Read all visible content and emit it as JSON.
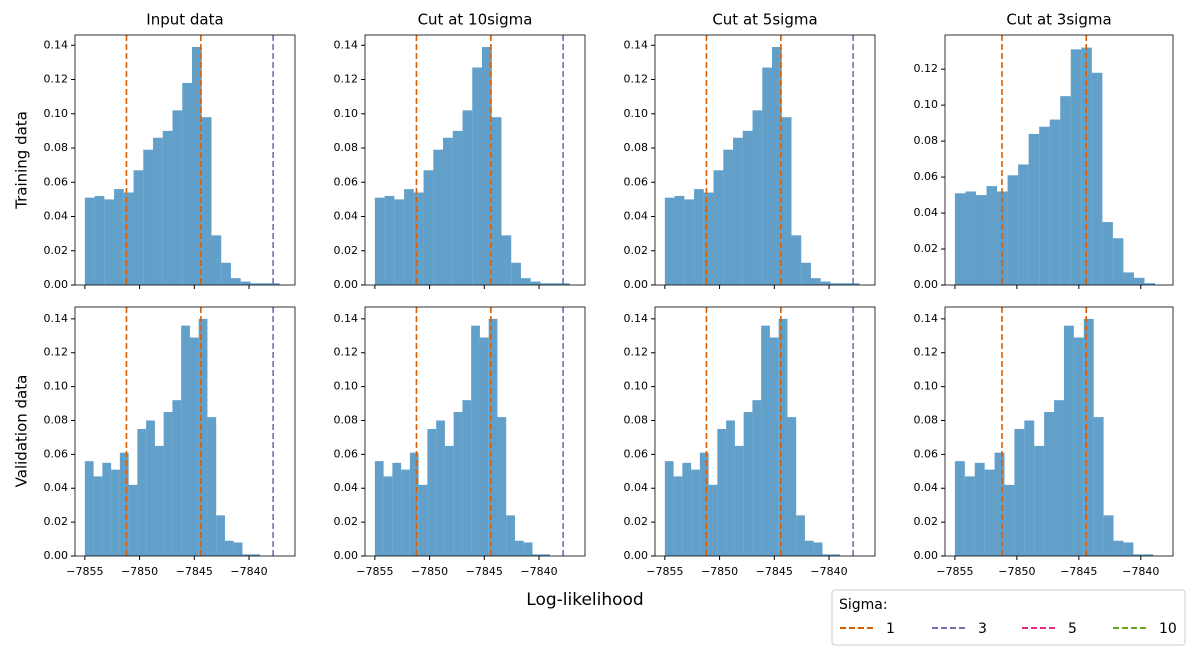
{
  "chart_data": [
    {
      "type": "histogram",
      "title": "Input data",
      "color": "#1f77b4",
      "alpha": 0.7,
      "bins": [
        -7855,
        -7854.11,
        -7853.22,
        -7852.33,
        -7851.44,
        -7850.55,
        -7849.66,
        -7848.77,
        -7847.88,
        -7846.99,
        -7846.1,
        -7845.21,
        -7844.32,
        -7843.43,
        -7842.54,
        -7841.65,
        -7840.76,
        -7839.87,
        -7838.98,
        -7838.09,
        -7837.2
      ],
      "values": [
        0.051,
        0.052,
        0.05,
        0.056,
        0.054,
        0.067,
        0.079,
        0.086,
        0.09,
        0.102,
        0.118,
        0.139,
        0.098,
        0.029,
        0.013,
        0.004,
        0.002,
        0.001,
        0.001,
        0.001
      ],
      "vlines": [
        {
          "x": -7851.2,
          "color": "#d95f02"
        },
        {
          "x": -7844.4,
          "color": "#d95f02"
        },
        {
          "x": -7837.8,
          "color": "#7570b3"
        }
      ],
      "xlim": [
        -7855.9,
        -7835.8
      ],
      "xticks": [
        -7855,
        -7850,
        -7845,
        -7840
      ],
      "ylim": [
        0,
        0.146
      ],
      "yticks": [
        {
          "value": 0,
          "label": "0.00"
        },
        {
          "value": 0.02,
          "label": "0.02"
        },
        {
          "value": 0.04,
          "label": "0.04"
        },
        {
          "value": 0.06,
          "label": "0.06"
        },
        {
          "value": 0.08,
          "label": "0.08"
        },
        {
          "value": 0.1,
          "label": "0.10"
        },
        {
          "value": 0.12,
          "label": "0.12"
        },
        {
          "value": 0.14,
          "label": "0.14"
        }
      ]
    },
    {
      "type": "histogram",
      "title": "Cut at 10sigma",
      "color": "#1f77b4",
      "alpha": 0.7,
      "bins": [
        -7855,
        -7854.11,
        -7853.22,
        -7852.33,
        -7851.44,
        -7850.55,
        -7849.66,
        -7848.77,
        -7847.88,
        -7846.99,
        -7846.1,
        -7845.21,
        -7844.32,
        -7843.43,
        -7842.54,
        -7841.65,
        -7840.76,
        -7839.87,
        -7838.98,
        -7838.09,
        -7837.2
      ],
      "values": [
        0.051,
        0.052,
        0.05,
        0.056,
        0.054,
        0.067,
        0.079,
        0.086,
        0.09,
        0.102,
        0.127,
        0.139,
        0.098,
        0.029,
        0.013,
        0.004,
        0.002,
        0.001,
        0.001,
        0.001
      ],
      "vlines": [
        {
          "x": -7851.2,
          "color": "#d95f02"
        },
        {
          "x": -7844.4,
          "color": "#d95f02"
        },
        {
          "x": -7837.8,
          "color": "#7570b3"
        }
      ],
      "xlim": [
        -7855.9,
        -7835.8
      ],
      "xticks": [
        -7855,
        -7850,
        -7845,
        -7840
      ],
      "ylim": [
        0,
        0.146
      ],
      "yticks": [
        {
          "value": 0,
          "label": "0.00"
        },
        {
          "value": 0.02,
          "label": "0.02"
        },
        {
          "value": 0.04,
          "label": "0.04"
        },
        {
          "value": 0.06,
          "label": "0.06"
        },
        {
          "value": 0.08,
          "label": "0.08"
        },
        {
          "value": 0.1,
          "label": "0.10"
        },
        {
          "value": 0.12,
          "label": "0.12"
        },
        {
          "value": 0.14,
          "label": "0.14"
        }
      ]
    },
    {
      "type": "histogram",
      "title": "Cut at 5sigma",
      "color": "#1f77b4",
      "alpha": 0.7,
      "bins": [
        -7855,
        -7854.11,
        -7853.22,
        -7852.33,
        -7851.44,
        -7850.55,
        -7849.66,
        -7848.77,
        -7847.88,
        -7846.99,
        -7846.1,
        -7845.21,
        -7844.32,
        -7843.43,
        -7842.54,
        -7841.65,
        -7840.76,
        -7839.87,
        -7838.98,
        -7838.09,
        -7837.2
      ],
      "values": [
        0.051,
        0.052,
        0.05,
        0.056,
        0.054,
        0.067,
        0.079,
        0.086,
        0.09,
        0.102,
        0.127,
        0.139,
        0.098,
        0.029,
        0.013,
        0.004,
        0.002,
        0.001,
        0.001,
        0.001
      ],
      "vlines": [
        {
          "x": -7851.2,
          "color": "#d95f02"
        },
        {
          "x": -7844.4,
          "color": "#d95f02"
        },
        {
          "x": -7837.8,
          "color": "#7570b3"
        }
      ],
      "xlim": [
        -7855.9,
        -7835.8
      ],
      "xticks": [
        -7855,
        -7850,
        -7845,
        -7840
      ],
      "ylim": [
        0,
        0.146
      ],
      "yticks": [
        {
          "value": 0,
          "label": "0.00"
        },
        {
          "value": 0.02,
          "label": "0.02"
        },
        {
          "value": 0.04,
          "label": "0.04"
        },
        {
          "value": 0.06,
          "label": "0.06"
        },
        {
          "value": 0.08,
          "label": "0.08"
        },
        {
          "value": 0.1,
          "label": "0.10"
        },
        {
          "value": 0.12,
          "label": "0.12"
        },
        {
          "value": 0.14,
          "label": "0.14"
        }
      ]
    },
    {
      "type": "histogram",
      "title": "Cut at 3sigma",
      "color": "#1f77b4",
      "alpha": 0.7,
      "bins": [
        -7855,
        -7854.15,
        -7853.3,
        -7852.45,
        -7851.6,
        -7850.75,
        -7849.9,
        -7849.05,
        -7848.2,
        -7847.35,
        -7846.5,
        -7845.65,
        -7844.8,
        -7843.95,
        -7843.1,
        -7842.25,
        -7841.4,
        -7840.55,
        -7839.7,
        -7838.85
      ],
      "values": [
        0.051,
        0.052,
        0.05,
        0.055,
        0.052,
        0.061,
        0.067,
        0.084,
        0.088,
        0.092,
        0.105,
        0.131,
        0.132,
        0.118,
        0.035,
        0.026,
        0.007,
        0.004,
        0.001
      ],
      "vlines": [
        {
          "x": -7851.2,
          "color": "#d95f02"
        },
        {
          "x": -7844.4,
          "color": "#d95f02"
        }
      ],
      "xlim": [
        -7855.8,
        -7837.4
      ],
      "xticks": [
        -7855,
        -7850,
        -7845,
        -7840
      ],
      "ylim": [
        0,
        0.139
      ],
      "yticks": [
        {
          "value": 0,
          "label": "0.00"
        },
        {
          "value": 0.02,
          "label": "0.02"
        },
        {
          "value": 0.04,
          "label": "0.04"
        },
        {
          "value": 0.06,
          "label": "0.06"
        },
        {
          "value": 0.08,
          "label": "0.08"
        },
        {
          "value": 0.1,
          "label": "0.10"
        },
        {
          "value": 0.12,
          "label": "0.12"
        }
      ]
    },
    {
      "type": "histogram",
      "color": "#1f77b4",
      "alpha": 0.7,
      "bins": [
        -7855,
        -7854.2,
        -7853.4,
        -7852.6,
        -7851.8,
        -7851,
        -7850.2,
        -7849.4,
        -7848.6,
        -7847.8,
        -7847,
        -7846.2,
        -7845.4,
        -7844.6,
        -7843.8,
        -7843,
        -7842.2,
        -7841.4,
        -7840.6,
        -7839.8,
        -7839
      ],
      "values": [
        0.056,
        0.047,
        0.055,
        0.051,
        0.061,
        0.042,
        0.075,
        0.08,
        0.065,
        0.085,
        0.092,
        0.136,
        0.129,
        0.14,
        0.082,
        0.024,
        0.009,
        0.008,
        0.001,
        0.001
      ],
      "vlines": [
        {
          "x": -7851.2,
          "color": "#d95f02"
        },
        {
          "x": -7844.4,
          "color": "#d95f02"
        },
        {
          "x": -7837.8,
          "color": "#7570b3"
        }
      ],
      "xlim": [
        -7855.9,
        -7835.8
      ],
      "xticks": [
        {
          "value": -7855,
          "label": "−7855"
        },
        {
          "value": -7850,
          "label": "−7850"
        },
        {
          "value": -7845,
          "label": "−7845"
        },
        {
          "value": -7840,
          "label": "−7840"
        }
      ],
      "ylim": [
        0,
        0.147
      ],
      "yticks": [
        {
          "value": 0,
          "label": "0.00"
        },
        {
          "value": 0.02,
          "label": "0.02"
        },
        {
          "value": 0.04,
          "label": "0.04"
        },
        {
          "value": 0.06,
          "label": "0.06"
        },
        {
          "value": 0.08,
          "label": "0.08"
        },
        {
          "value": 0.1,
          "label": "0.10"
        },
        {
          "value": 0.12,
          "label": "0.12"
        },
        {
          "value": 0.14,
          "label": "0.14"
        }
      ]
    },
    {
      "type": "histogram",
      "color": "#1f77b4",
      "alpha": 0.7,
      "bins": [
        -7855,
        -7854.2,
        -7853.4,
        -7852.6,
        -7851.8,
        -7851,
        -7850.2,
        -7849.4,
        -7848.6,
        -7847.8,
        -7847,
        -7846.2,
        -7845.4,
        -7844.6,
        -7843.8,
        -7843,
        -7842.2,
        -7841.4,
        -7840.6,
        -7839.8,
        -7839
      ],
      "values": [
        0.056,
        0.047,
        0.055,
        0.051,
        0.061,
        0.042,
        0.075,
        0.08,
        0.065,
        0.085,
        0.092,
        0.136,
        0.129,
        0.14,
        0.082,
        0.024,
        0.009,
        0.008,
        0.001,
        0.001
      ],
      "vlines": [
        {
          "x": -7851.2,
          "color": "#d95f02"
        },
        {
          "x": -7844.4,
          "color": "#d95f02"
        },
        {
          "x": -7837.8,
          "color": "#7570b3"
        }
      ],
      "xlim": [
        -7855.9,
        -7835.8
      ],
      "xticks": [
        {
          "value": -7855,
          "label": "−7855"
        },
        {
          "value": -7850,
          "label": "−7850"
        },
        {
          "value": -7845,
          "label": "−7845"
        },
        {
          "value": -7840,
          "label": "−7840"
        }
      ],
      "ylim": [
        0,
        0.147
      ],
      "yticks": [
        {
          "value": 0,
          "label": "0.00"
        },
        {
          "value": 0.02,
          "label": "0.02"
        },
        {
          "value": 0.04,
          "label": "0.04"
        },
        {
          "value": 0.06,
          "label": "0.06"
        },
        {
          "value": 0.08,
          "label": "0.08"
        },
        {
          "value": 0.1,
          "label": "0.10"
        },
        {
          "value": 0.12,
          "label": "0.12"
        },
        {
          "value": 0.14,
          "label": "0.14"
        }
      ]
    },
    {
      "type": "histogram",
      "color": "#1f77b4",
      "alpha": 0.7,
      "bins": [
        -7855,
        -7854.2,
        -7853.4,
        -7852.6,
        -7851.8,
        -7851,
        -7850.2,
        -7849.4,
        -7848.6,
        -7847.8,
        -7847,
        -7846.2,
        -7845.4,
        -7844.6,
        -7843.8,
        -7843,
        -7842.2,
        -7841.4,
        -7840.6,
        -7839.8,
        -7839
      ],
      "values": [
        0.056,
        0.047,
        0.055,
        0.051,
        0.061,
        0.042,
        0.075,
        0.08,
        0.065,
        0.085,
        0.092,
        0.136,
        0.129,
        0.14,
        0.082,
        0.024,
        0.009,
        0.008,
        0.001,
        0.001
      ],
      "vlines": [
        {
          "x": -7851.2,
          "color": "#d95f02"
        },
        {
          "x": -7844.4,
          "color": "#d95f02"
        },
        {
          "x": -7837.8,
          "color": "#7570b3"
        }
      ],
      "xlim": [
        -7855.9,
        -7835.8
      ],
      "xticks": [
        {
          "value": -7855,
          "label": "−7855"
        },
        {
          "value": -7850,
          "label": "−7850"
        },
        {
          "value": -7845,
          "label": "−7845"
        },
        {
          "value": -7840,
          "label": "−7840"
        }
      ],
      "ylim": [
        0,
        0.147
      ],
      "yticks": [
        {
          "value": 0,
          "label": "0.00"
        },
        {
          "value": 0.02,
          "label": "0.02"
        },
        {
          "value": 0.04,
          "label": "0.04"
        },
        {
          "value": 0.06,
          "label": "0.06"
        },
        {
          "value": 0.08,
          "label": "0.08"
        },
        {
          "value": 0.1,
          "label": "0.10"
        },
        {
          "value": 0.12,
          "label": "0.12"
        },
        {
          "value": 0.14,
          "label": "0.14"
        }
      ]
    },
    {
      "type": "histogram",
      "color": "#1f77b4",
      "alpha": 0.7,
      "bins": [
        -7855,
        -7854.2,
        -7853.4,
        -7852.6,
        -7851.8,
        -7851,
        -7850.2,
        -7849.4,
        -7848.6,
        -7847.8,
        -7847,
        -7846.2,
        -7845.4,
        -7844.6,
        -7843.8,
        -7843,
        -7842.2,
        -7841.4,
        -7840.6,
        -7839.8,
        -7839
      ],
      "values": [
        0.056,
        0.047,
        0.055,
        0.051,
        0.061,
        0.042,
        0.075,
        0.08,
        0.065,
        0.085,
        0.092,
        0.136,
        0.129,
        0.14,
        0.082,
        0.024,
        0.009,
        0.008,
        0.001,
        0.001
      ],
      "vlines": [
        {
          "x": -7851.2,
          "color": "#d95f02"
        },
        {
          "x": -7844.4,
          "color": "#d95f02"
        }
      ],
      "xlim": [
        -7855.8,
        -7837.4
      ],
      "xticks": [
        {
          "value": -7855,
          "label": "−7855"
        },
        {
          "value": -7850,
          "label": "−7850"
        },
        {
          "value": -7845,
          "label": "−7845"
        },
        {
          "value": -7840,
          "label": "−7840"
        }
      ],
      "ylim": [
        0,
        0.147
      ],
      "yticks": [
        {
          "value": 0,
          "label": "0.00"
        },
        {
          "value": 0.02,
          "label": "0.02"
        },
        {
          "value": 0.04,
          "label": "0.04"
        },
        {
          "value": 0.06,
          "label": "0.06"
        },
        {
          "value": 0.08,
          "label": "0.08"
        },
        {
          "value": 0.1,
          "label": "0.10"
        },
        {
          "value": 0.12,
          "label": "0.12"
        },
        {
          "value": 0.14,
          "label": "0.14"
        }
      ]
    }
  ],
  "figure": {
    "xlabel": "Log-likelihood",
    "row_labels": [
      "Training data",
      "Validation data"
    ],
    "legend": {
      "title": "Sigma:",
      "entries": [
        {
          "label": 1,
          "color": "#d95f02"
        },
        {
          "label": 3,
          "color": "#7570b3"
        },
        {
          "label": 5,
          "color": "#e7298a"
        },
        {
          "label": 10,
          "color": "#66a61e"
        }
      ]
    }
  }
}
